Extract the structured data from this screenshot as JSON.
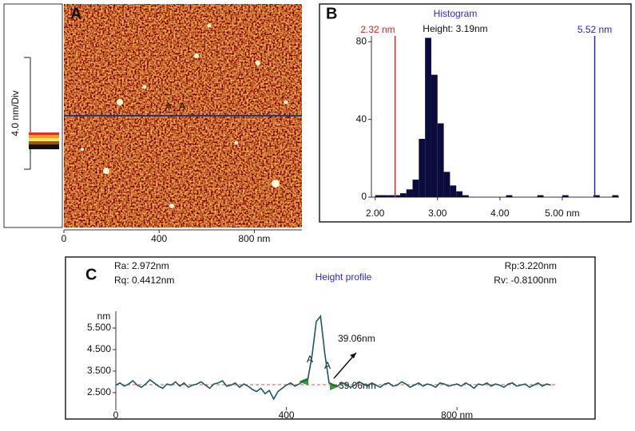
{
  "chart_data": [
    {
      "type": "image",
      "label": "A",
      "scale_label": "4.0 nm/Div",
      "profile_marks": [
        "A",
        "A"
      ],
      "xlim": [
        0,
        1000
      ],
      "xticks": [
        0,
        400,
        {
          "value": 800,
          "label": "800 nm"
        }
      ]
    },
    {
      "type": "histogram",
      "label": "B",
      "title": "Histogram",
      "subtitle": "Height: 3.19nm",
      "color": "#0b0b3d",
      "bins": [
        2.0,
        2.1,
        2.2,
        2.3,
        2.4,
        2.5,
        2.6,
        2.7,
        2.8,
        2.9,
        3.0,
        3.1,
        3.2,
        3.3,
        3.4,
        3.5,
        3.6,
        3.7,
        3.8,
        3.9,
        4.0,
        4.1,
        4.2,
        4.3,
        4.4,
        4.5,
        4.6,
        4.7,
        4.8,
        4.9,
        5.0,
        5.1,
        5.2,
        5.3,
        5.4,
        5.5,
        5.6,
        5.7,
        5.8,
        5.9
      ],
      "counts": [
        1,
        1,
        1,
        1,
        2,
        4,
        9,
        30,
        82,
        63,
        38,
        13,
        6,
        3,
        1,
        0,
        0,
        0,
        0,
        0,
        0,
        1,
        0,
        0,
        0,
        0,
        1,
        0,
        0,
        0,
        1,
        0,
        0,
        0,
        0,
        1,
        0,
        0,
        1
      ],
      "xlim": [
        1.94,
        5.91
      ],
      "xticks": [
        {
          "value": 2,
          "label": "2.00"
        },
        {
          "value": 3,
          "label": "3.00"
        },
        {
          "value": 4,
          "label": "4.00"
        },
        {
          "value": 5,
          "label": "5.00 nm"
        }
      ],
      "ylim": [
        0,
        83
      ],
      "yticks": [
        0,
        40,
        80
      ],
      "markers": [
        {
          "value": 2.32,
          "label": "2.32 nm",
          "color": "#e02020"
        },
        {
          "value": 5.52,
          "label": "5.52 nm",
          "color": "#2424c8"
        }
      ]
    },
    {
      "type": "line",
      "label": "C",
      "title": "Height profile",
      "stats": [
        "Ra: 2.972nm",
        "Rq: 0.4412nm",
        "Rp:3.220nm",
        "Rv: -0.8100nm"
      ],
      "ylabel": "nm",
      "annotation": "39.06nm",
      "width_label": "39.06nm",
      "cursor_marks": [
        "A",
        "A"
      ],
      "x": [
        0,
        10,
        20,
        30,
        40,
        50,
        60,
        70,
        80,
        90,
        100,
        110,
        120,
        130,
        140,
        150,
        160,
        170,
        180,
        190,
        200,
        210,
        220,
        230,
        240,
        250,
        260,
        270,
        280,
        290,
        300,
        310,
        320,
        330,
        340,
        350,
        360,
        370,
        380,
        390,
        400,
        410,
        420,
        430,
        440,
        450,
        460,
        470,
        480,
        490,
        500,
        510,
        520,
        530,
        540,
        550,
        560,
        570,
        580,
        590,
        600,
        610,
        620,
        630,
        640,
        650,
        660,
        670,
        680,
        690,
        700,
        710,
        720,
        730,
        740,
        750,
        760,
        770,
        780,
        790,
        800,
        810,
        820,
        830,
        840,
        850,
        860,
        870,
        880,
        890,
        900,
        910,
        920,
        930,
        940,
        950,
        960,
        970,
        980,
        990,
        1000,
        1010,
        1020
      ],
      "series": [
        {
          "color": "#1d5a5a",
          "values": [
            2.85,
            2.95,
            2.8,
            2.9,
            3.05,
            2.85,
            2.75,
            2.9,
            3.1,
            2.95,
            2.8,
            2.7,
            2.9,
            2.85,
            3.0,
            2.8,
            2.95,
            2.75,
            2.85,
            2.9,
            3.0,
            2.85,
            2.7,
            2.9,
            2.95,
            3.05,
            2.8,
            2.85,
            2.95,
            2.75,
            2.9,
            2.8,
            2.65,
            2.55,
            2.7,
            2.45,
            2.6,
            2.2,
            2.55,
            2.7,
            2.85,
            2.95,
            2.8,
            2.9,
            3.05,
            3.1,
            4.2,
            5.8,
            6.05,
            4.3,
            2.95,
            2.85,
            2.8,
            2.95,
            2.9,
            2.75,
            2.85,
            3.0,
            2.9,
            2.8,
            2.95,
            2.85,
            2.75,
            2.9,
            2.95,
            2.8,
            2.85,
            3.0,
            2.9,
            2.75,
            2.85,
            2.95,
            2.8,
            2.9,
            2.85,
            2.75,
            2.95,
            2.9,
            2.8,
            2.85,
            2.9,
            2.8,
            2.95,
            2.85,
            2.7,
            2.9,
            2.85,
            2.95,
            2.8,
            2.9,
            2.85,
            2.75,
            2.9,
            2.95,
            2.8,
            2.85,
            2.9,
            2.75,
            2.85,
            2.95,
            2.8,
            2.9,
            2.85
          ]
        }
      ],
      "reference_line": 2.87,
      "xlim": [
        0,
        1030
      ],
      "xticks": [
        0,
        400,
        {
          "value": 800,
          "label": "800 nm"
        }
      ],
      "ylim": [
        1.83,
        6.28
      ],
      "yticks": [
        {
          "value": 2.5,
          "label": "2.500"
        },
        {
          "value": 3.5,
          "label": "3.500"
        },
        {
          "value": 4.5,
          "label": "4.500"
        },
        {
          "value": 5.5,
          "label": "5.500"
        }
      ]
    }
  ]
}
